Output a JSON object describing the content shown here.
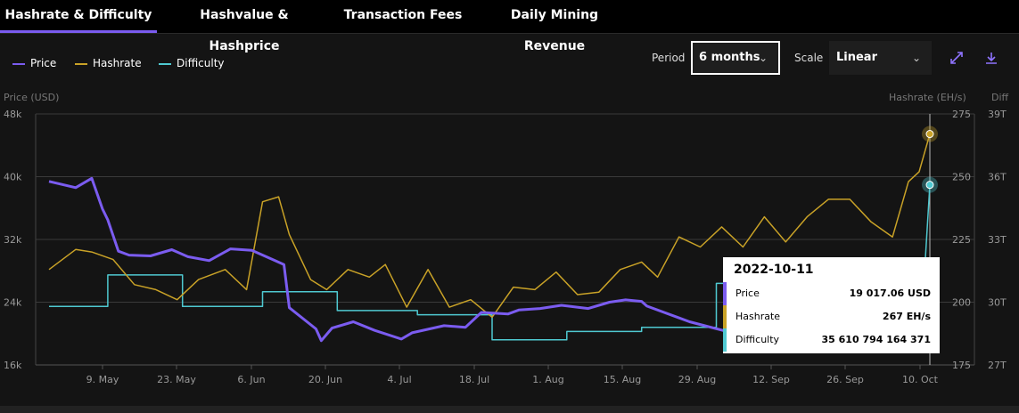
{
  "tabs": [
    {
      "label": "Hashrate & Difficulty",
      "active": true
    },
    {
      "label": "Hashvalue & Hashprice",
      "active": false
    },
    {
      "label": "Transaction Fees",
      "active": false
    },
    {
      "label": "Daily Mining Revenue",
      "active": false
    }
  ],
  "controls": {
    "period_label": "Period",
    "period_value": "6 months",
    "scale_label": "Scale",
    "scale_value": "Linear",
    "expand_icon": "expand-icon",
    "download_icon": "download-icon"
  },
  "colors": {
    "price": "#7b5cf0",
    "hashrate": "#c9a227",
    "difficulty": "#4fc9d1"
  },
  "tooltip": {
    "date": "2022-10-11",
    "rows": [
      {
        "label": "Price",
        "value": "19 017.06 USD"
      },
      {
        "label": "Hashrate",
        "value": "267 EH/s"
      },
      {
        "label": "Difficulty",
        "value": "35 610 794 164 371"
      }
    ]
  },
  "chart_data": {
    "type": "line",
    "left_axis": {
      "title": "Price (USD)",
      "ticks": [
        "16k",
        "24k",
        "32k",
        "40k",
        "48k"
      ],
      "values": [
        16000,
        24000,
        32000,
        40000,
        48000
      ],
      "range": [
        16000,
        48000
      ]
    },
    "hashrate_axis": {
      "title": "Hashrate (EH/s)",
      "ticks": [
        "175",
        "200",
        "225",
        "250",
        "275"
      ],
      "values": [
        175,
        200,
        225,
        250,
        275
      ],
      "range": [
        175,
        275
      ]
    },
    "difficulty_axis": {
      "title": "Diff",
      "ticks": [
        "27T",
        "30T",
        "33T",
        "36T",
        "39T"
      ],
      "values": [
        27,
        30,
        33,
        36,
        39
      ],
      "range": [
        27,
        39
      ],
      "unit": "T"
    },
    "x_axis": {
      "ticks": [
        "9. May",
        "23. May",
        "6. Jun",
        "20. Jun",
        "4. Jul",
        "18. Jul",
        "1. Aug",
        "15. Aug",
        "29. Aug",
        "12. Sep",
        "26. Sep",
        "10. Oct"
      ],
      "range": [
        "2022-04-29",
        "2022-10-11"
      ]
    },
    "grid": true,
    "legend_position": "top-left",
    "series": [
      {
        "name": "Price",
        "key": "price",
        "x": [
          "2022-04-29",
          "2022-05-04",
          "2022-05-07",
          "2022-05-09",
          "2022-05-10",
          "2022-05-12",
          "2022-05-14",
          "2022-05-18",
          "2022-05-22",
          "2022-05-25",
          "2022-05-29",
          "2022-06-02",
          "2022-06-06",
          "2022-06-10",
          "2022-06-12",
          "2022-06-13",
          "2022-06-18",
          "2022-06-19",
          "2022-06-21",
          "2022-06-25",
          "2022-06-29",
          "2022-07-04",
          "2022-07-06",
          "2022-07-12",
          "2022-07-16",
          "2022-07-19",
          "2022-07-24",
          "2022-07-26",
          "2022-07-30",
          "2022-08-03",
          "2022-08-08",
          "2022-08-12",
          "2022-08-15",
          "2022-08-18",
          "2022-08-19",
          "2022-08-27",
          "2022-09-04",
          "2022-09-09",
          "2022-09-13",
          "2022-09-17",
          "2022-09-22",
          "2022-09-26",
          "2022-10-01",
          "2022-10-05",
          "2022-10-11"
        ],
        "y": [
          39400,
          38600,
          39800,
          35900,
          34500,
          30500,
          30000,
          29900,
          30700,
          29800,
          29300,
          30800,
          30600,
          29400,
          28800,
          23300,
          20600,
          19100,
          20700,
          21500,
          20400,
          19300,
          20100,
          21000,
          20800,
          22700,
          22500,
          23000,
          23200,
          23600,
          23200,
          24000,
          24300,
          24100,
          23500,
          21500,
          20100,
          20900,
          20200,
          20100,
          19200,
          19800,
          19400,
          19600,
          19017
        ]
      },
      {
        "name": "Hashrate",
        "key": "hashrate",
        "x": [
          "2022-04-29",
          "2022-05-04",
          "2022-05-07",
          "2022-05-11",
          "2022-05-15",
          "2022-05-19",
          "2022-05-23",
          "2022-05-27",
          "2022-06-01",
          "2022-06-05",
          "2022-06-08",
          "2022-06-11",
          "2022-06-13",
          "2022-06-17",
          "2022-06-20",
          "2022-06-24",
          "2022-06-28",
          "2022-07-01",
          "2022-07-05",
          "2022-07-09",
          "2022-07-13",
          "2022-07-17",
          "2022-07-21",
          "2022-07-25",
          "2022-07-29",
          "2022-08-02",
          "2022-08-06",
          "2022-08-10",
          "2022-08-14",
          "2022-08-18",
          "2022-08-21",
          "2022-08-25",
          "2022-08-29",
          "2022-09-02",
          "2022-09-06",
          "2022-09-10",
          "2022-09-14",
          "2022-09-18",
          "2022-09-22",
          "2022-09-26",
          "2022-09-30",
          "2022-10-04",
          "2022-10-07",
          "2022-10-09",
          "2022-10-11"
        ],
        "y": [
          213,
          221,
          220,
          217,
          207,
          205,
          201,
          209,
          213,
          205,
          240,
          242,
          227,
          209,
          205,
          213,
          210,
          215,
          198,
          213,
          198,
          201,
          194,
          206,
          205,
          212,
          203,
          204,
          213,
          216,
          210,
          226,
          222,
          230,
          222,
          234,
          224,
          234,
          241,
          241,
          232,
          226,
          248,
          252,
          267
        ]
      },
      {
        "name": "Difficulty",
        "key": "difficulty",
        "x": [
          "2022-04-29",
          "2022-05-10",
          "2022-05-10",
          "2022-05-24",
          "2022-05-24",
          "2022-06-08",
          "2022-06-08",
          "2022-06-22",
          "2022-06-22",
          "2022-07-07",
          "2022-07-07",
          "2022-07-21",
          "2022-07-21",
          "2022-08-04",
          "2022-08-04",
          "2022-08-18",
          "2022-08-18",
          "2022-09-01",
          "2022-09-01",
          "2022-09-13",
          "2022-09-13",
          "2022-09-27",
          "2022-09-27",
          "2022-10-10",
          "2022-10-10",
          "2022-10-11"
        ],
        "y": [
          29.8,
          29.8,
          31.3,
          31.3,
          29.8,
          29.8,
          30.5,
          30.5,
          29.6,
          29.6,
          29.4,
          29.4,
          28.2,
          28.2,
          28.6,
          28.6,
          28.8,
          28.8,
          30.9,
          30.9,
          30.0,
          30.0,
          31.4,
          31.4,
          31.4,
          35.61
        ]
      }
    ]
  }
}
